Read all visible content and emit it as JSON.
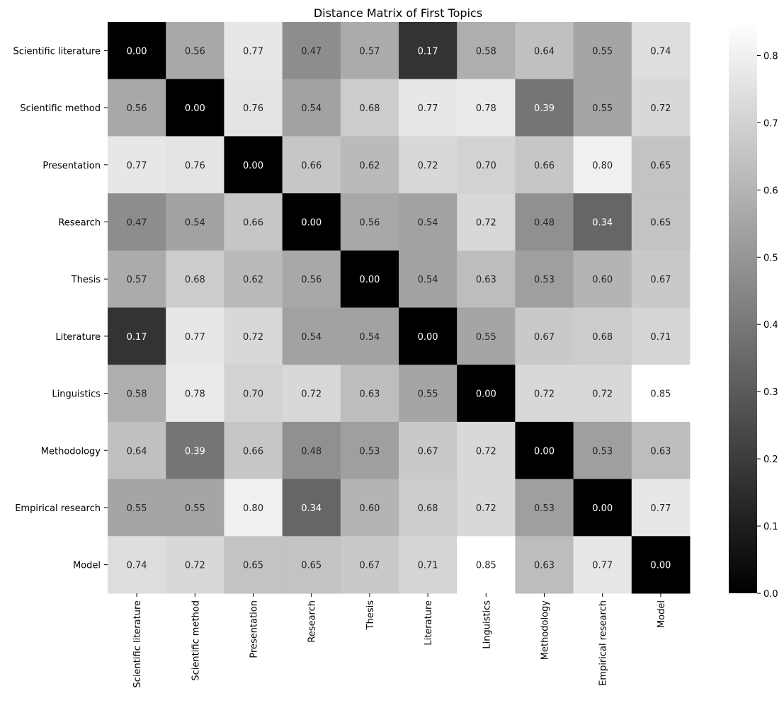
{
  "chart_data": {
    "type": "heatmap",
    "title": "Distance Matrix of First Topics",
    "xlabel": "",
    "ylabel": "",
    "rows": [
      "Scientific literature",
      "Scientific method",
      "Presentation",
      "Research",
      "Thesis",
      "Literature",
      "Linguistics",
      "Methodology",
      "Empirical research",
      "Model"
    ],
    "columns": [
      "Scientific literature",
      "Scientific method",
      "Presentation",
      "Research",
      "Thesis",
      "Literature",
      "Linguistics",
      "Methodology",
      "Empirical research",
      "Model"
    ],
    "values": [
      [
        0.0,
        0.56,
        0.77,
        0.47,
        0.57,
        0.17,
        0.58,
        0.64,
        0.55,
        0.74
      ],
      [
        0.56,
        0.0,
        0.76,
        0.54,
        0.68,
        0.77,
        0.78,
        0.39,
        0.55,
        0.72
      ],
      [
        0.77,
        0.76,
        0.0,
        0.66,
        0.62,
        0.72,
        0.7,
        0.66,
        0.8,
        0.65
      ],
      [
        0.47,
        0.54,
        0.66,
        0.0,
        0.56,
        0.54,
        0.72,
        0.48,
        0.34,
        0.65
      ],
      [
        0.57,
        0.68,
        0.62,
        0.56,
        0.0,
        0.54,
        0.63,
        0.53,
        0.6,
        0.67
      ],
      [
        0.17,
        0.77,
        0.72,
        0.54,
        0.54,
        0.0,
        0.55,
        0.67,
        0.68,
        0.71
      ],
      [
        0.58,
        0.78,
        0.7,
        0.72,
        0.63,
        0.55,
        0.0,
        0.72,
        0.72,
        0.85
      ],
      [
        0.64,
        0.39,
        0.66,
        0.48,
        0.53,
        0.67,
        0.72,
        0.0,
        0.53,
        0.63
      ],
      [
        0.55,
        0.55,
        0.8,
        0.34,
        0.6,
        0.68,
        0.72,
        0.53,
        0.0,
        0.77
      ],
      [
        0.74,
        0.72,
        0.65,
        0.65,
        0.67,
        0.71,
        0.85,
        0.63,
        0.77,
        0.0
      ]
    ],
    "colormap": "gray",
    "color_low": "#000000",
    "color_high": "#ffffff",
    "vmin": 0,
    "vmax": 0.85,
    "colorbar_ticks": [
      "0.0",
      "0.1",
      "0.2",
      "0.3",
      "0.4",
      "0.5",
      "0.6",
      "0.7",
      "0.8"
    ],
    "annotation_format": "2 decimals",
    "grid": false
  }
}
